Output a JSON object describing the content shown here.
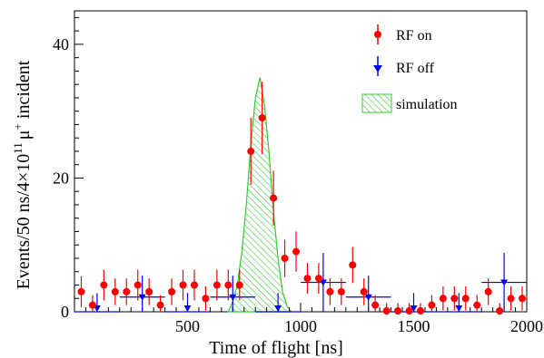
{
  "chart_data": {
    "type": "scatter",
    "xlabel": "Time of flight [ns]",
    "ylabel": {
      "prefix": "Events/50 ns/4×10",
      "exponent": "11",
      "particle": "μ",
      "charge": "+",
      "suffix": " incident"
    },
    "xlim": [
      0,
      2000
    ],
    "ylim": [
      0,
      45
    ],
    "x_ticks": [
      500,
      1000,
      1500,
      2000
    ],
    "y_ticks": [
      0,
      20,
      40
    ],
    "grid": false,
    "legend_position": "top-right",
    "series": [
      {
        "name": "RF on",
        "color": "#ff0000",
        "marker": "circle",
        "x": [
          30,
          80,
          130,
          180,
          230,
          280,
          330,
          380,
          430,
          480,
          530,
          580,
          630,
          680,
          730,
          780,
          830,
          880,
          930,
          980,
          1030,
          1080,
          1130,
          1180,
          1230,
          1280,
          1330,
          1380,
          1430,
          1480,
          1530,
          1580,
          1630,
          1680,
          1730,
          1780,
          1830,
          1880,
          1930,
          1980
        ],
        "y": [
          3,
          1,
          4,
          3,
          3,
          4,
          3,
          1,
          3,
          4,
          4,
          2,
          4,
          4,
          4,
          24,
          29,
          17,
          8,
          9,
          5,
          5,
          3,
          3,
          7,
          3,
          1,
          0,
          0,
          0,
          0,
          1,
          2,
          2,
          2,
          1,
          3,
          0,
          2,
          2
        ],
        "yerr": [
          2.3,
          1.5,
          2.3,
          2.0,
          2.0,
          2.3,
          2.0,
          1.5,
          2.0,
          2.3,
          2.3,
          1.8,
          2.3,
          2.3,
          2.3,
          5,
          5.4,
          4.1,
          2.8,
          3,
          2.3,
          2.3,
          2.0,
          2.0,
          2.7,
          2.0,
          1.5,
          1.3,
          1.3,
          1.3,
          1.3,
          1.5,
          1.8,
          1.8,
          1.8,
          1.5,
          2.0,
          1.3,
          1.8,
          1.8
        ]
      },
      {
        "name": "RF off",
        "color": "#0000ff",
        "marker": "triangle-down",
        "x": [
          100,
          300,
          500,
          700,
          900,
          1100,
          1300,
          1500,
          1700,
          1900
        ],
        "y": [
          0,
          2.2,
          0,
          2.2,
          0,
          4.4,
          2.2,
          0,
          0,
          4.4
        ],
        "xerr": [
          100,
          100,
          100,
          100,
          100,
          100,
          100,
          100,
          100,
          100
        ],
        "yerr": [
          2.8,
          3.2,
          2.8,
          3.2,
          2.8,
          4.4,
          3.2,
          2.8,
          2.8,
          4.4
        ]
      },
      {
        "name": "simulation",
        "color": "#33cc33",
        "style": "hatched-histogram",
        "x": [
          680,
          700,
          720,
          740,
          760,
          780,
          800,
          820,
          840,
          860,
          880,
          900,
          920,
          940,
          960
        ],
        "y": [
          0,
          1.5,
          4,
          9,
          16,
          25,
          32,
          35,
          31,
          24,
          15,
          8,
          3,
          0.8,
          0
        ]
      }
    ]
  }
}
